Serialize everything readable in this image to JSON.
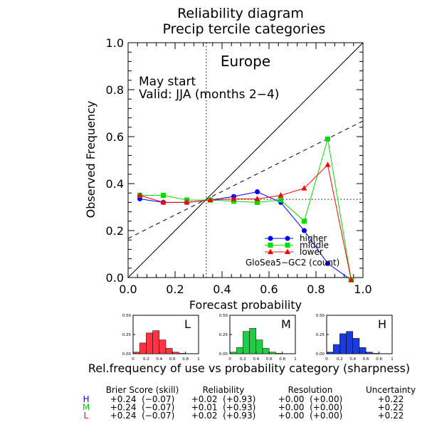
{
  "chart_data": {
    "type": "line",
    "title": [
      "Reliability diagram",
      "Precip tercile categories"
    ],
    "region": "Europe",
    "annotation": [
      "May start",
      "Valid: JJA (months 2−4)"
    ],
    "xlabel": "Forecast probability",
    "ylabel": "Observed Frequency",
    "xlim": [
      0.0,
      1.0
    ],
    "ylim": [
      0.0,
      1.0
    ],
    "xticks": [
      "0.0",
      "0.2",
      "0.4",
      "0.6",
      "0.8",
      "1.0"
    ],
    "yticks": [
      "0.0",
      "0.2",
      "0.4",
      "0.6",
      "0.8",
      "1.0"
    ],
    "climatology": 0.333,
    "legend_position": "bottom-right",
    "legend_note": "GloSea5−GC2 (count)",
    "series": [
      {
        "name": "higher",
        "color": "#0000ff",
        "marker": "circle",
        "x": [
          0.05,
          0.15,
          0.25,
          0.35,
          0.45,
          0.55,
          0.65,
          0.75,
          0.85,
          0.95
        ],
        "y": [
          0.335,
          0.32,
          0.32,
          0.33,
          0.345,
          0.365,
          0.32,
          0.2,
          0.06,
          -0.01
        ]
      },
      {
        "name": "middle",
        "color": "#00dd00",
        "marker": "square",
        "x": [
          0.05,
          0.15,
          0.25,
          0.35,
          0.45,
          0.55,
          0.65,
          0.75,
          0.85,
          0.95
        ],
        "y": [
          0.35,
          0.35,
          0.33,
          0.33,
          0.325,
          0.32,
          0.33,
          0.24,
          0.59,
          -0.01
        ]
      },
      {
        "name": "lower",
        "color": "#ff0000",
        "marker": "triangle",
        "x": [
          0.05,
          0.15,
          0.25,
          0.35,
          0.45,
          0.55,
          0.65,
          0.75,
          0.85,
          0.95
        ],
        "y": [
          0.35,
          0.32,
          0.32,
          0.33,
          0.335,
          0.335,
          0.35,
          0.38,
          0.48,
          -0.01
        ]
      }
    ],
    "sharpness": {
      "caption": "Rel.frequency of use vs probability category (sharpness)",
      "yticks": [
        "0.00",
        "0.25",
        "0.50"
      ],
      "xticks": [
        "0",
        "0.2",
        "0.4",
        "0.6",
        "0.8",
        "1"
      ],
      "ylim": [
        0,
        0.5
      ],
      "panels": [
        {
          "label": "L",
          "color": "#ff3344",
          "values": [
            0.02,
            0.14,
            0.27,
            0.3,
            0.18,
            0.07,
            0.02,
            0.005,
            0,
            0
          ]
        },
        {
          "label": "M",
          "color": "#22cc44",
          "values": [
            0.02,
            0.08,
            0.29,
            0.33,
            0.18,
            0.07,
            0.02,
            0.005,
            0,
            0
          ]
        },
        {
          "label": "H",
          "color": "#1a3adc",
          "values": [
            0.02,
            0.12,
            0.26,
            0.29,
            0.2,
            0.08,
            0.02,
            0.005,
            0,
            0
          ]
        }
      ]
    },
    "scores": {
      "headers": [
        "Brier Score (skill)",
        "Reliability",
        "Resolution",
        "Uncertainty"
      ],
      "rows": [
        {
          "label": "H",
          "color": "#0000ff",
          "values": [
            "+0.24  (−0.07)",
            "+0.02  (+0.93)",
            "+0.00  (+0.00)",
            "+0.22"
          ]
        },
        {
          "label": "M",
          "color": "#00cc00",
          "values": [
            "+0.24  (−0.07)",
            "+0.01  (+0.93)",
            "+0.00  (+0.00)",
            "+0.22"
          ]
        },
        {
          "label": "L",
          "color": "#ff0000",
          "values": [
            "+0.24  (−0.07)",
            "+0.02  (+0.93)",
            "+0.00  (+0.00)",
            "+0.22"
          ]
        }
      ]
    }
  }
}
